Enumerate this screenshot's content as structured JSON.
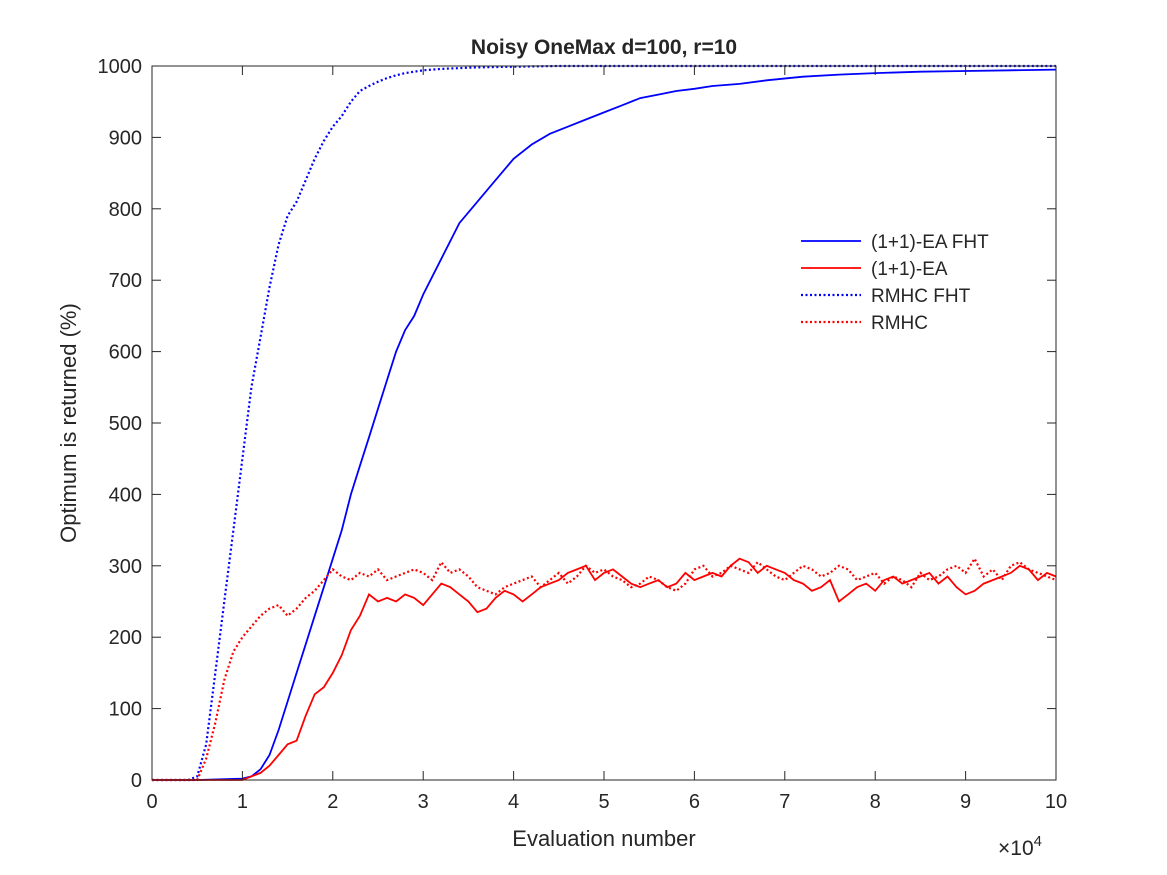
{
  "chart_data": {
    "type": "line",
    "title": "Noisy OneMax d=100, r=10",
    "xlabel": "Evaluation number",
    "ylabel": "Optimum is returned (%)",
    "x_multiplier_label": "×10",
    "x_multiplier_exponent": "4",
    "xlim": [
      0,
      100000
    ],
    "ylim": [
      0,
      1000
    ],
    "xticks": [
      0,
      10000,
      20000,
      30000,
      40000,
      50000,
      60000,
      70000,
      80000,
      90000,
      100000
    ],
    "xtick_labels": [
      "0",
      "1",
      "2",
      "3",
      "4",
      "5",
      "6",
      "7",
      "8",
      "9",
      "10"
    ],
    "yticks": [
      0,
      100,
      200,
      300,
      400,
      500,
      600,
      700,
      800,
      900,
      1000
    ],
    "ytick_labels": [
      "0",
      "100",
      "200",
      "300",
      "400",
      "500",
      "600",
      "700",
      "800",
      "900",
      "1000"
    ],
    "grid": false,
    "legend_position": "center-right",
    "series": [
      {
        "name": "(1+1)-EA FHT",
        "color": "#0000ff",
        "style": "solid",
        "x": [
          0,
          5000,
          10000,
          11000,
          12000,
          13000,
          14000,
          15000,
          16000,
          17000,
          18000,
          19000,
          20000,
          21000,
          22000,
          23000,
          24000,
          25000,
          26000,
          27000,
          28000,
          29000,
          30000,
          32000,
          34000,
          36000,
          38000,
          40000,
          42000,
          44000,
          46000,
          48000,
          50000,
          52000,
          54000,
          56000,
          58000,
          60000,
          62000,
          65000,
          68000,
          72000,
          76000,
          80000,
          85000,
          90000,
          95000,
          100000
        ],
        "y": [
          0,
          0,
          2,
          5,
          15,
          35,
          70,
          110,
          150,
          190,
          230,
          270,
          310,
          350,
          400,
          440,
          480,
          520,
          560,
          600,
          630,
          650,
          680,
          730,
          780,
          810,
          840,
          870,
          890,
          905,
          915,
          925,
          935,
          945,
          955,
          960,
          965,
          968,
          972,
          975,
          980,
          985,
          988,
          990,
          992,
          993,
          994,
          995
        ]
      },
      {
        "name": "(1+1)-EA",
        "color": "#ff0000",
        "style": "solid",
        "x": [
          0,
          10000,
          11000,
          12000,
          13000,
          14000,
          15000,
          16000,
          17000,
          18000,
          19000,
          20000,
          21000,
          22000,
          23000,
          24000,
          25000,
          26000,
          27000,
          28000,
          29000,
          30000,
          31000,
          32000,
          33000,
          34000,
          35000,
          36000,
          37000,
          38000,
          39000,
          40000,
          41000,
          42000,
          43000,
          44000,
          45000,
          46000,
          47000,
          48000,
          49000,
          50000,
          51000,
          52000,
          53000,
          54000,
          55000,
          56000,
          57000,
          58000,
          59000,
          60000,
          61000,
          62000,
          63000,
          64000,
          65000,
          66000,
          67000,
          68000,
          69000,
          70000,
          71000,
          72000,
          73000,
          74000,
          75000,
          76000,
          77000,
          78000,
          79000,
          80000,
          81000,
          82000,
          83000,
          84000,
          85000,
          86000,
          87000,
          88000,
          89000,
          90000,
          91000,
          92000,
          93000,
          94000,
          95000,
          96000,
          97000,
          98000,
          99000,
          100000
        ],
        "y": [
          0,
          0,
          5,
          10,
          20,
          35,
          50,
          55,
          90,
          120,
          130,
          150,
          175,
          210,
          230,
          260,
          250,
          255,
          250,
          260,
          255,
          245,
          260,
          275,
          270,
          260,
          250,
          235,
          240,
          255,
          265,
          260,
          250,
          260,
          270,
          275,
          280,
          290,
          295,
          300,
          280,
          290,
          295,
          285,
          275,
          270,
          275,
          280,
          270,
          275,
          290,
          280,
          285,
          290,
          285,
          300,
          310,
          305,
          290,
          300,
          295,
          290,
          280,
          275,
          265,
          270,
          280,
          250,
          260,
          270,
          275,
          265,
          280,
          285,
          275,
          280,
          285,
          290,
          275,
          285,
          270,
          260,
          265,
          275,
          280,
          285,
          290,
          300,
          295,
          280,
          290,
          285
        ]
      },
      {
        "name": "RMHC FHT",
        "color": "#0000ff",
        "style": "dotted",
        "x": [
          0,
          4000,
          5000,
          6000,
          7000,
          8000,
          9000,
          10000,
          11000,
          12000,
          13000,
          14000,
          15000,
          16000,
          17000,
          18000,
          19000,
          20000,
          21000,
          22000,
          23000,
          24000,
          25000,
          26000,
          27000,
          28000,
          30000,
          32000,
          34000,
          36000,
          40000,
          45000,
          50000,
          60000,
          70000,
          80000,
          90000,
          100000
        ],
        "y": [
          0,
          0,
          5,
          50,
          150,
          250,
          350,
          450,
          550,
          620,
          690,
          750,
          790,
          810,
          840,
          870,
          895,
          915,
          930,
          950,
          965,
          972,
          978,
          983,
          987,
          990,
          994,
          996,
          997,
          998,
          999,
          1000,
          1000,
          1000,
          1000,
          1000,
          1000,
          1000
        ]
      },
      {
        "name": "RMHC",
        "color": "#ff0000",
        "style": "dotted",
        "x": [
          0,
          5000,
          6000,
          7000,
          8000,
          9000,
          10000,
          11000,
          12000,
          13000,
          14000,
          15000,
          16000,
          17000,
          18000,
          19000,
          20000,
          21000,
          22000,
          23000,
          24000,
          25000,
          26000,
          27000,
          28000,
          29000,
          30000,
          31000,
          32000,
          33000,
          34000,
          35000,
          36000,
          37000,
          38000,
          39000,
          40000,
          41000,
          42000,
          43000,
          44000,
          45000,
          46000,
          47000,
          48000,
          49000,
          50000,
          51000,
          52000,
          53000,
          54000,
          55000,
          56000,
          57000,
          58000,
          59000,
          60000,
          61000,
          62000,
          63000,
          64000,
          65000,
          66000,
          67000,
          68000,
          69000,
          70000,
          71000,
          72000,
          73000,
          74000,
          75000,
          76000,
          77000,
          78000,
          79000,
          80000,
          81000,
          82000,
          83000,
          84000,
          85000,
          86000,
          87000,
          88000,
          89000,
          90000,
          91000,
          92000,
          93000,
          94000,
          95000,
          96000,
          97000,
          98000,
          99000,
          100000
        ],
        "y": [
          0,
          0,
          30,
          80,
          140,
          180,
          200,
          215,
          230,
          240,
          245,
          230,
          240,
          255,
          265,
          280,
          295,
          285,
          280,
          290,
          285,
          295,
          280,
          285,
          290,
          295,
          290,
          280,
          305,
          290,
          295,
          285,
          270,
          265,
          260,
          270,
          275,
          280,
          285,
          270,
          280,
          290,
          275,
          285,
          300,
          290,
          295,
          285,
          280,
          270,
          275,
          285,
          280,
          270,
          265,
          275,
          295,
          300,
          285,
          290,
          300,
          295,
          290,
          305,
          295,
          285,
          280,
          290,
          300,
          295,
          285,
          290,
          300,
          295,
          280,
          285,
          290,
          275,
          285,
          280,
          270,
          290,
          280,
          285,
          295,
          300,
          290,
          310,
          285,
          295,
          280,
          300,
          305,
          295,
          290,
          285,
          280
        ]
      }
    ]
  }
}
